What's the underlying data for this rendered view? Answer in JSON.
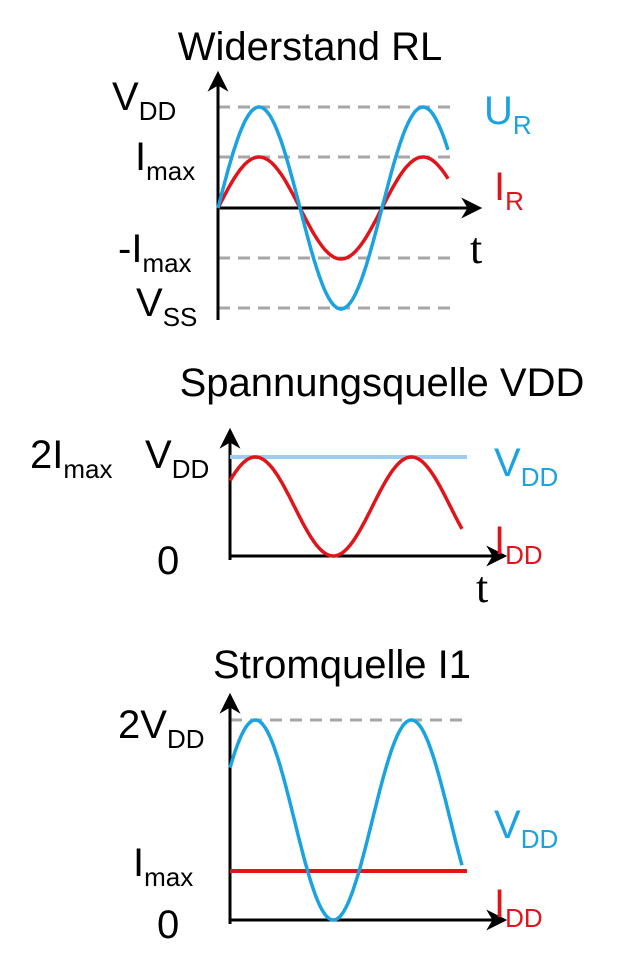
{
  "colors": {
    "axis": "#000000",
    "guide": "#a6a6a6",
    "blue": "#1aa3e0",
    "red": "#e0151b",
    "lightblue": "#9ccdf0"
  },
  "panel1": {
    "title": "Widerstand RL",
    "y_labels": {
      "vdd": {
        "main": "V",
        "sub": "DD"
      },
      "imax": {
        "main": "I",
        "sub": "max"
      },
      "neg_imax": {
        "main": "-I",
        "sub": "max"
      },
      "vss": {
        "main": "V",
        "sub": "SS"
      }
    },
    "axis_t": "t",
    "legend_u": {
      "main": "U",
      "sub": "R"
    },
    "legend_i": {
      "main": "I",
      "sub": "R"
    }
  },
  "panel2": {
    "title": "Spannungsquelle VDD",
    "y_label_2imax": {
      "main": "2I",
      "sub": "max"
    },
    "y_label_vdd": {
      "main": "V",
      "sub": "DD"
    },
    "y_label_zero": "0",
    "axis_t": "t",
    "legend_v": {
      "main": "V",
      "sub": "DD"
    },
    "legend_i": {
      "main": "I",
      "sub": "DD"
    }
  },
  "panel3": {
    "title": "Stromquelle I1",
    "y_label_2vdd": {
      "main": "2V",
      "sub": "DD"
    },
    "y_label_imax": {
      "main": "I",
      "sub": "max"
    },
    "y_label_zero": "0",
    "legend_v": {
      "main": "V",
      "sub": "DD"
    },
    "legend_i": {
      "main": "I",
      "sub": "DD"
    }
  }
}
